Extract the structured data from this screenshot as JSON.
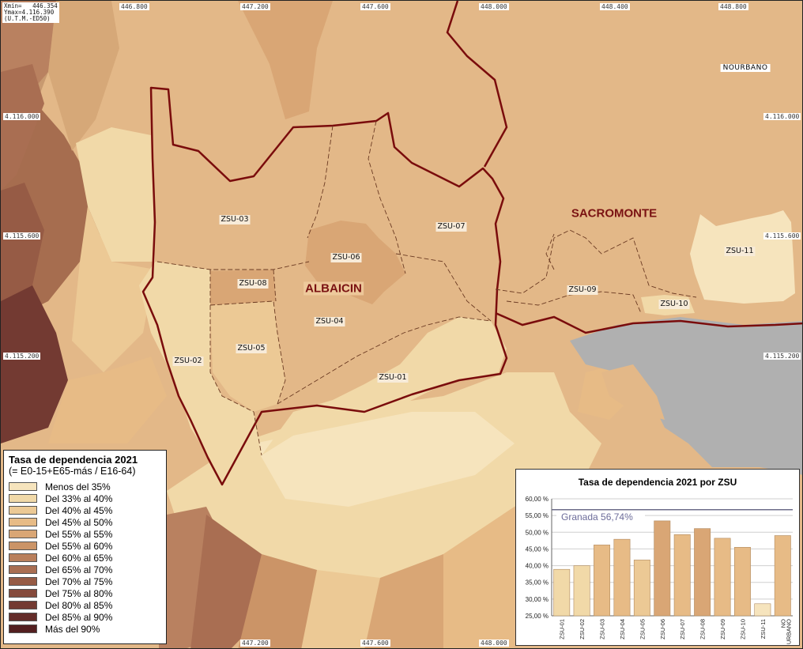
{
  "extent": {
    "line1": "Xmin=   446.354",
    "line2": "Ymax=4.116.390",
    "line3": "(U.T.M.-ED50)"
  },
  "coords": {
    "top": [
      "446.800",
      "447.200",
      "447.600",
      "448.000",
      "448.400",
      "448.800"
    ],
    "bottom": [
      "447.200",
      "447.600",
      "448.000"
    ],
    "left": [
      "4.116.000",
      "4.115.600",
      "4.115.200"
    ],
    "right": [
      "4.116.000",
      "4.115.600",
      "4.115.200"
    ]
  },
  "zsu_labels": [
    "ZSU-01",
    "ZSU-02",
    "ZSU-03",
    "ZSU-04",
    "ZSU-05",
    "ZSU-06",
    "ZSU-07",
    "ZSU-08",
    "ZSU-09",
    "ZSU-10",
    "ZSU-11"
  ],
  "area_labels": {
    "albaicin": "ALBAICIN",
    "sacromonte": "SACROMONTE",
    "nourbano": "NOURBANO"
  },
  "legend": {
    "title": "Tasa de dependencia 2021",
    "subtitle": "(= E0-15+E65-más / E16-64)",
    "items": [
      {
        "label": "Menos del 35%",
        "color": "#f6e4bd"
      },
      {
        "label": "Del 33% al 40%",
        "color": "#f1d9a8"
      },
      {
        "label": "Del 40% al 45%",
        "color": "#ecc995"
      },
      {
        "label": "Del 45% al 50%",
        "color": "#e7bb86"
      },
      {
        "label": "Del 55% al 55%",
        "color": "#d9a675"
      },
      {
        "label": "Del 55% al 60%",
        "color": "#cb9467"
      },
      {
        "label": "Del 60% al 65%",
        "color": "#b97f5c"
      },
      {
        "label": "Del 65% al 70%",
        "color": "#a96e52"
      },
      {
        "label": "Del 70% al 75%",
        "color": "#965b45"
      },
      {
        "label": "Del 75% al 80%",
        "color": "#854a3c"
      },
      {
        "label": "Del 80% al 85%",
        "color": "#733a32"
      },
      {
        "label": "Del 85% al 90%",
        "color": "#642c29"
      },
      {
        "label": "Más del 90%",
        "color": "#531f20"
      }
    ]
  },
  "colors": {
    "boundary": "#7a0c0c",
    "water": "#b0b0b0",
    "granada_line": "#8a8aa0"
  },
  "chart_data": {
    "type": "bar",
    "title": "Tasa de dependencia 2021 por ZSU",
    "categories": [
      "ZSU-01",
      "ZSU-02",
      "ZSU-03",
      "ZSU-04",
      "ZSU-05",
      "ZSU-06",
      "ZSU-07",
      "ZSU-08",
      "ZSU-09",
      "ZSU-10",
      "ZSU-11",
      "NO URBANO"
    ],
    "values": [
      38.9,
      40.0,
      46.2,
      47.9,
      41.7,
      53.4,
      49.3,
      51.1,
      48.2,
      45.5,
      28.6,
      49.0
    ],
    "bar_colors": [
      "#f1d9a8",
      "#f1d9a8",
      "#e7bb86",
      "#e7bb86",
      "#ecc995",
      "#d9a675",
      "#e7bb86",
      "#d9a675",
      "#e7bb86",
      "#e7bb86",
      "#f6e4bd",
      "#e7bb86"
    ],
    "ylim": [
      25,
      60
    ],
    "yticks": [
      "25,00 %",
      "30,00 %",
      "35,00 %",
      "40,00 %",
      "45,00 %",
      "50,00 %",
      "55,00 %",
      "60,00 %"
    ],
    "reference": {
      "label": "Granada 56,74%",
      "value": 56.74
    },
    "grid": true
  }
}
